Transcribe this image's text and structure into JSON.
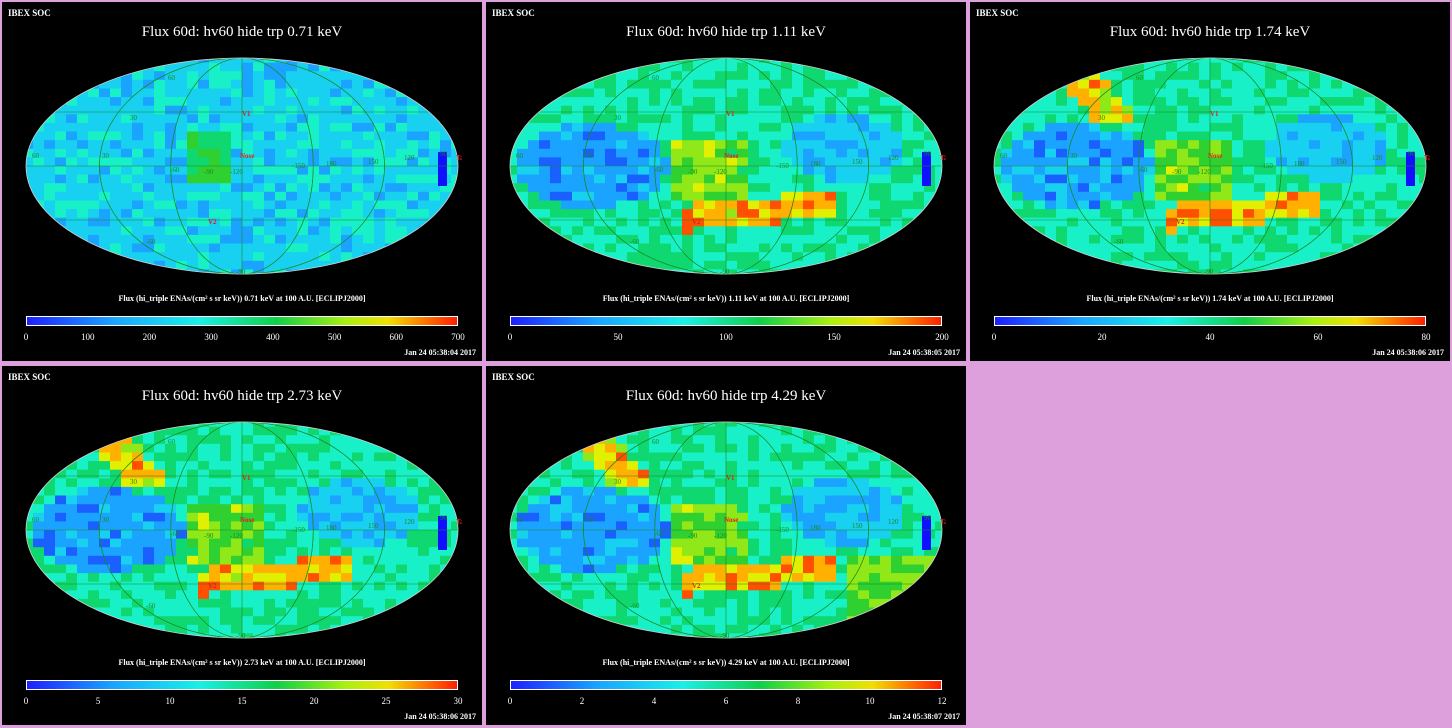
{
  "panels": [
    {
      "soc_label": "IBEX SOC",
      "title": "Flux 60d: hv60 hide trp 0.71 keV",
      "flux_label": "Flux (hi_triple ENAs/(cm² s sr keV)) 0.71 keV at 100 A.U. [ECLIPJ2000]",
      "colorbar_ticks": [
        "0",
        "100",
        "200",
        "300",
        "400",
        "500",
        "600",
        "700"
      ],
      "timestamp": "Jan 24 05:38:04 2017"
    },
    {
      "soc_label": "IBEX SOC",
      "title": "Flux 60d: hv60 hide trp 1.11 keV",
      "flux_label": "Flux (hi_triple ENAs/(cm² s sr keV)) 1.11 keV at 100 A.U. [ECLIPJ2000]",
      "colorbar_ticks": [
        "0",
        "50",
        "100",
        "150",
        "200"
      ],
      "timestamp": "Jan 24 05:38:05 2017"
    },
    {
      "soc_label": "IBEX SOC",
      "title": "Flux 60d: hv60 hide trp 1.74 keV",
      "flux_label": "Flux (hi_triple ENAs/(cm² s sr keV)) 1.74 keV at 100 A.U. [ECLIPJ2000]",
      "colorbar_ticks": [
        "0",
        "20",
        "40",
        "60",
        "80"
      ],
      "timestamp": "Jan 24 05:38:06 2017"
    },
    {
      "soc_label": "IBEX SOC",
      "title": "Flux 60d: hv60 hide trp 2.73 keV",
      "flux_label": "Flux (hi_triple ENAs/(cm² s sr keV)) 2.73 keV at 100 A.U. [ECLIPJ2000]",
      "colorbar_ticks": [
        "0",
        "5",
        "10",
        "15",
        "20",
        "25",
        "30"
      ],
      "timestamp": "Jan 24 05:38:06 2017"
    },
    {
      "soc_label": "IBEX SOC",
      "title": "Flux 60d: hv60 hide trp 4.29 keV",
      "flux_label": "Flux (hi_triple ENAs/(cm² s sr keV)) 4.29 keV at 100 A.U. [ECLIPJ2000]",
      "colorbar_ticks": [
        "0",
        "2",
        "4",
        "6",
        "8",
        "10",
        "12"
      ],
      "timestamp": "Jan 24 05:38:07 2017"
    }
  ],
  "map_labels": {
    "v1": "V1",
    "v2": "V2",
    "nose": "Nose",
    "tail": "Tail",
    "lat_60": "60",
    "lat_30": "30",
    "lat_m60": "-60",
    "lat_m90": "-90",
    "lon_60": "60",
    "lon_30": "30",
    "lon_m60": "-60",
    "lon_m90": "-90",
    "lon_m120": "-120",
    "lon_m150": "-150",
    "lon_180": "180",
    "lon_150": "150",
    "lon_120": "120",
    "lon_90": "90"
  },
  "colors": {
    "background": "#dda0dd",
    "panel_background": "#000000",
    "grid_line": "#1a8a1a",
    "marker": "#e02020"
  }
}
